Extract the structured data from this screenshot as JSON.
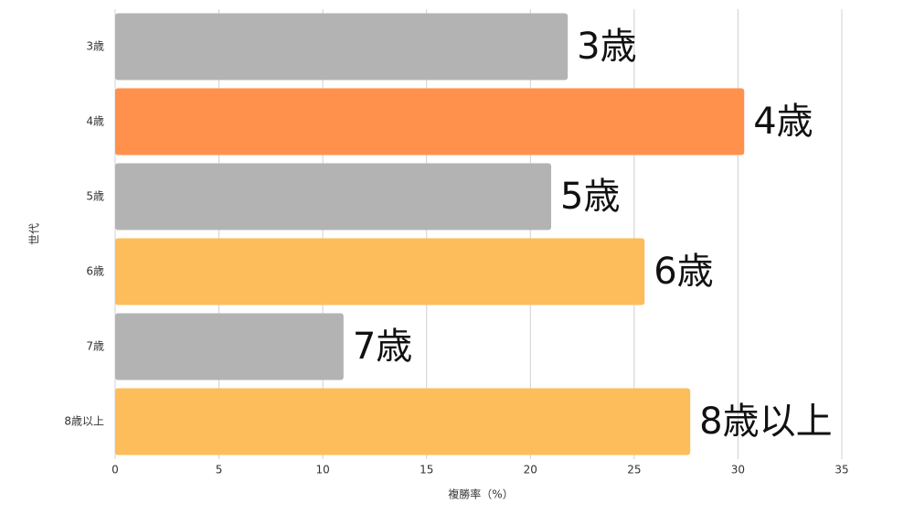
{
  "chart_data": {
    "type": "barh",
    "categories": [
      "3歳",
      "4歳",
      "5歳",
      "6歳",
      "7歳",
      "8歳以上"
    ],
    "values": [
      21.8,
      30.3,
      21.0,
      25.5,
      11.0,
      27.7
    ],
    "colors": [
      "#b3b3b3",
      "#ff914d",
      "#b3b3b3",
      "#fdbd5a",
      "#b3b3b3",
      "#fdbd5a"
    ],
    "xlabel": "複勝率（%）",
    "ylabel": "世代",
    "xlim": [
      0,
      35
    ],
    "xticks": [
      0,
      5,
      10,
      15,
      20,
      25,
      30,
      35
    ],
    "grid": true
  }
}
